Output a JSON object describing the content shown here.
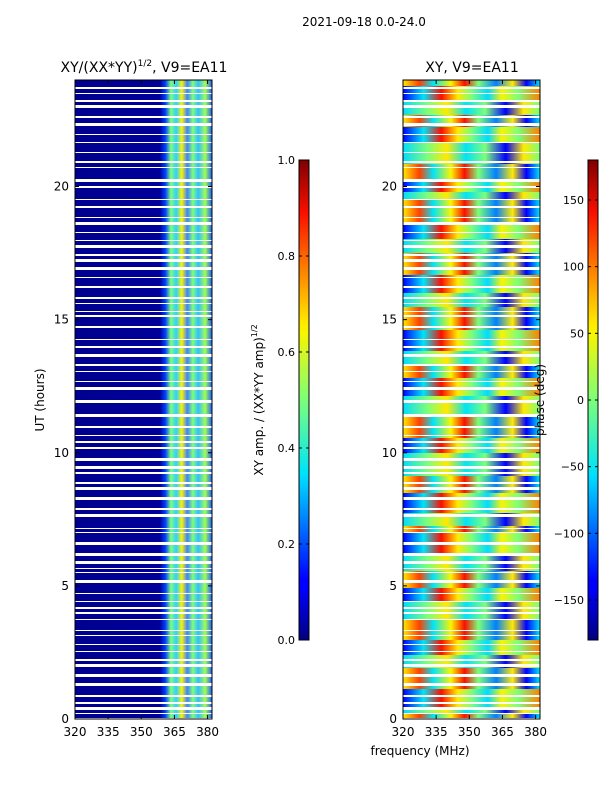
{
  "suptitle": "2021-09-18 0.0-24.0",
  "xlabel": "frequency (MHz)",
  "chart_data": [
    {
      "type": "heatmap",
      "title": "XY/(XX*YY)",
      "title_sup": "1/2",
      "title_suffix": ", V9=EA11",
      "ylabel": "UT (hours)",
      "xlim": [
        320,
        382
      ],
      "ylim": [
        0,
        24
      ],
      "xticks": [
        320,
        335,
        350,
        365,
        380
      ],
      "yticks": [
        0,
        5,
        10,
        15,
        20
      ],
      "colorbar": {
        "label": "XY amp. / (XX*YY amp)",
        "label_sup": "1/2",
        "range": [
          0.0,
          1.0
        ],
        "ticks": [
          "0.0",
          "0.2",
          "0.4",
          "0.6",
          "0.8",
          "1.0"
        ]
      },
      "bands": [
        {
          "freq_range": [
            320,
            361
          ],
          "level": 0.05,
          "note": "low normalized amplitude (dark blue)"
        },
        {
          "freq_range": [
            362,
            382
          ],
          "level": 0.45,
          "note": "elevated amplitude (cyan/green/yellow)"
        }
      ]
    },
    {
      "type": "heatmap",
      "title": "XY, V9=EA11",
      "ylabel": "",
      "xlim": [
        320,
        382
      ],
      "ylim": [
        0,
        24
      ],
      "xticks": [
        320,
        335,
        350,
        365,
        380
      ],
      "yticks": [
        0,
        5,
        10,
        15,
        20
      ],
      "colorbar": {
        "label": "phase (deg)",
        "range": [
          -180,
          180
        ],
        "ticks": [
          "−150",
          "−100",
          "−50",
          "0",
          "50",
          "100",
          "150"
        ]
      }
    }
  ]
}
